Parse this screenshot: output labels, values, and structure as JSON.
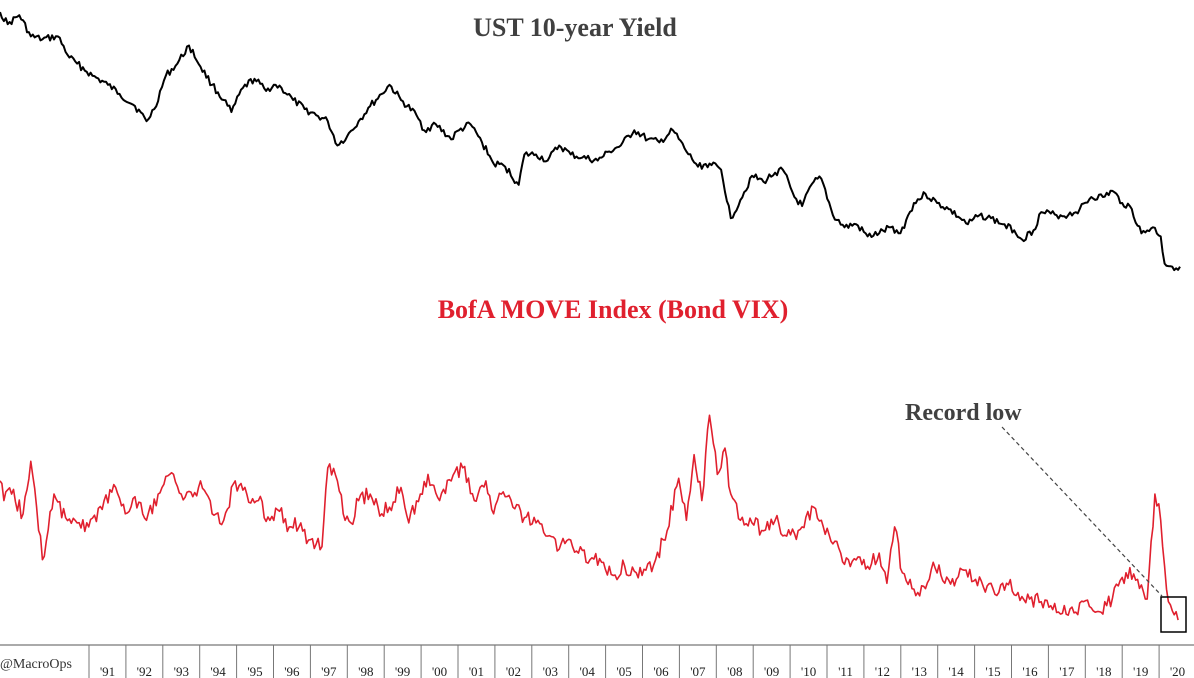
{
  "chart_data": [
    {
      "type": "line",
      "title": "UST 10-year Yield",
      "x_unit": "year",
      "xlim": [
        1990.0,
        2020.6
      ],
      "ylim": [
        -0.5,
        9.4
      ],
      "series": [
        {
          "color": "#000000",
          "x": [
            1990.0,
            1990.2,
            1990.5,
            1990.8,
            1991.1,
            1991.5,
            1991.8,
            1992.0,
            1992.4,
            1992.8,
            1993.1,
            1993.5,
            1993.8,
            1994.0,
            1994.3,
            1994.6,
            1994.9,
            1995.2,
            1995.5,
            1995.8,
            1996.0,
            1996.3,
            1996.6,
            1996.9,
            1997.1,
            1997.3,
            1997.6,
            1997.9,
            1998.2,
            1998.5,
            1998.75,
            1999.0,
            1999.3,
            1999.6,
            1999.9,
            2000.1,
            2000.4,
            2000.8,
            2001.0,
            2001.3,
            2001.7,
            2001.9,
            2002.2,
            2002.5,
            2002.8,
            2003.1,
            2003.45,
            2003.6,
            2003.9,
            2004.2,
            2004.5,
            2004.8,
            2005.1,
            2005.5,
            2005.8,
            2006.1,
            2006.45,
            2006.8,
            2007.1,
            2007.45,
            2007.8,
            2008.1,
            2008.4,
            2008.7,
            2008.95,
            2009.2,
            2009.5,
            2009.8,
            2010.1,
            2010.3,
            2010.6,
            2010.8,
            2011.1,
            2011.3,
            2011.6,
            2011.9,
            2012.2,
            2012.5,
            2012.8,
            2013.1,
            2013.35,
            2013.7,
            2014.0,
            2014.3,
            2014.6,
            2014.9,
            2015.1,
            2015.4,
            2015.7,
            2016.0,
            2016.3,
            2016.5,
            2016.8,
            2017.0,
            2017.4,
            2017.7,
            2018.0,
            2018.3,
            2018.6,
            2018.85,
            2019.1,
            2019.3,
            2019.6,
            2019.9,
            2020.1,
            2020.2,
            2020.4,
            2020.6
          ],
          "y": [
            9.0,
            8.6,
            8.9,
            8.2,
            8.1,
            8.2,
            7.5,
            7.3,
            6.9,
            6.6,
            6.3,
            5.9,
            5.4,
            5.8,
            6.9,
            7.3,
            7.9,
            7.2,
            6.6,
            6.1,
            5.7,
            6.5,
            6.8,
            6.4,
            6.6,
            6.5,
            6.1,
            5.8,
            5.6,
            5.4,
            4.6,
            4.9,
            5.4,
            5.9,
            6.3,
            6.6,
            6.1,
            5.6,
            5.1,
            5.3,
            4.8,
            5.1,
            5.3,
            4.7,
            4.0,
            3.9,
            3.3,
            4.3,
            4.3,
            4.1,
            4.6,
            4.3,
            4.2,
            4.1,
            4.4,
            4.6,
            5.1,
            4.8,
            4.7,
            5.1,
            4.4,
            3.9,
            4.0,
            3.8,
            2.2,
            2.8,
            3.6,
            3.4,
            3.7,
            3.8,
            2.9,
            2.6,
            3.4,
            3.5,
            2.3,
            1.9,
            2.0,
            1.6,
            1.7,
            1.9,
            1.7,
            2.7,
            3.0,
            2.7,
            2.5,
            2.2,
            2.0,
            2.3,
            2.2,
            2.0,
            1.8,
            1.5,
            1.8,
            2.4,
            2.3,
            2.3,
            2.5,
            2.9,
            2.9,
            3.1,
            2.7,
            2.6,
            1.7,
            1.9,
            1.6,
            0.7,
            0.6,
            0.6
          ]
        }
      ]
    },
    {
      "type": "line",
      "title": "BofA MOVE Index (Bond VIX)",
      "x_unit": "year",
      "xlim": [
        1990.0,
        2020.6
      ],
      "ylim": [
        25,
        265
      ],
      "x_ticks": [
        "'91",
        "'92",
        "'93",
        "'94",
        "'95",
        "'96",
        "'97",
        "'98",
        "'99",
        "'00",
        "'01",
        "'02",
        "'03",
        "'04",
        "'05",
        "'06",
        "'07",
        "'08",
        "'09",
        "'10",
        "'11",
        "'12",
        "'13",
        "'14",
        "'15",
        "'16",
        "'17",
        "'18",
        "'19",
        "'20"
      ],
      "annotation": "Record low",
      "series": [
        {
          "color": "#e0202e",
          "x": [
            1990.0,
            1990.1,
            1990.3,
            1990.6,
            1990.8,
            1991.1,
            1991.4,
            1991.7,
            1992.0,
            1992.3,
            1992.7,
            1993.0,
            1993.25,
            1993.5,
            1993.8,
            1994.1,
            1994.4,
            1994.7,
            1995.0,
            1995.2,
            1995.5,
            1995.8,
            1996.1,
            1996.4,
            1996.7,
            1997.0,
            1997.2,
            1997.5,
            1997.8,
            1998.0,
            1998.35,
            1998.5,
            1998.75,
            1998.9,
            1999.1,
            1999.3,
            1999.6,
            1999.9,
            2000.1,
            2000.4,
            2000.6,
            2000.9,
            2001.1,
            2001.4,
            2001.7,
            2002.0,
            2002.3,
            2002.6,
            2002.8,
            2003.0,
            2003.3,
            2003.6,
            2003.9,
            2004.2,
            2004.5,
            2004.8,
            2005.0,
            2005.3,
            2005.6,
            2005.9,
            2006.2,
            2006.5,
            2006.75,
            2007.0,
            2007.3,
            2007.6,
            2007.8,
            2008.0,
            2008.2,
            2008.4,
            2008.6,
            2008.8,
            2008.95,
            2009.2,
            2009.5,
            2009.8,
            2010.1,
            2010.4,
            2010.6,
            2010.8,
            2011.1,
            2011.3,
            2011.6,
            2011.8,
            2012.0,
            2012.3,
            2012.5,
            2012.8,
            2013.0,
            2013.2,
            2013.4,
            2013.6,
            2013.8,
            2014.0,
            2014.2,
            2014.5,
            2014.8,
            2015.0,
            2015.3,
            2015.6,
            2015.9,
            2016.1,
            2016.4,
            2016.7,
            2017.0,
            2017.3,
            2017.6,
            2017.9,
            2018.1,
            2018.4,
            2018.7,
            2019.0,
            2019.2,
            2019.5,
            2019.75,
            2019.95,
            2020.1,
            2020.2,
            2020.3,
            2020.45,
            2020.55
          ],
          "y": [
            150,
            135,
            140,
            125,
            165,
            90,
            140,
            122,
            118,
            115,
            135,
            145,
            125,
            138,
            120,
            140,
            155,
            140,
            138,
            150,
            125,
            120,
            150,
            140,
            135,
            120,
            128,
            115,
            118,
            105,
            100,
            160,
            150,
            125,
            118,
            135,
            140,
            125,
            130,
            145,
            118,
            140,
            155,
            135,
            150,
            160,
            135,
            150,
            125,
            140,
            130,
            122,
            118,
            108,
            98,
            105,
            95,
            90,
            88,
            78,
            85,
            80,
            82,
            90,
            112,
            152,
            120,
            170,
            135,
            200,
            155,
            175,
            140,
            120,
            118,
            112,
            120,
            108,
            110,
            115,
            130,
            120,
            102,
            95,
            90,
            92,
            85,
            95,
            72,
            115,
            80,
            75,
            65,
            68,
            88,
            72,
            75,
            82,
            75,
            70,
            65,
            72,
            65,
            60,
            58,
            52,
            55,
            50,
            58,
            50,
            55,
            70,
            80,
            75,
            60,
            140,
            120,
            85,
            58,
            48,
            44
          ]
        }
      ]
    }
  ],
  "labels": {
    "ust_title": "UST 10-year Yield",
    "move_title": "BofA MOVE Index (Bond VIX)",
    "record_low": "Record low",
    "credit": "@MacroOps"
  },
  "colors": {
    "ust_line": "#000000",
    "move_line": "#e0202e",
    "ust_title": "#404040",
    "move_title": "#e0202e",
    "annotation": "#404040",
    "axis": "#555555"
  }
}
